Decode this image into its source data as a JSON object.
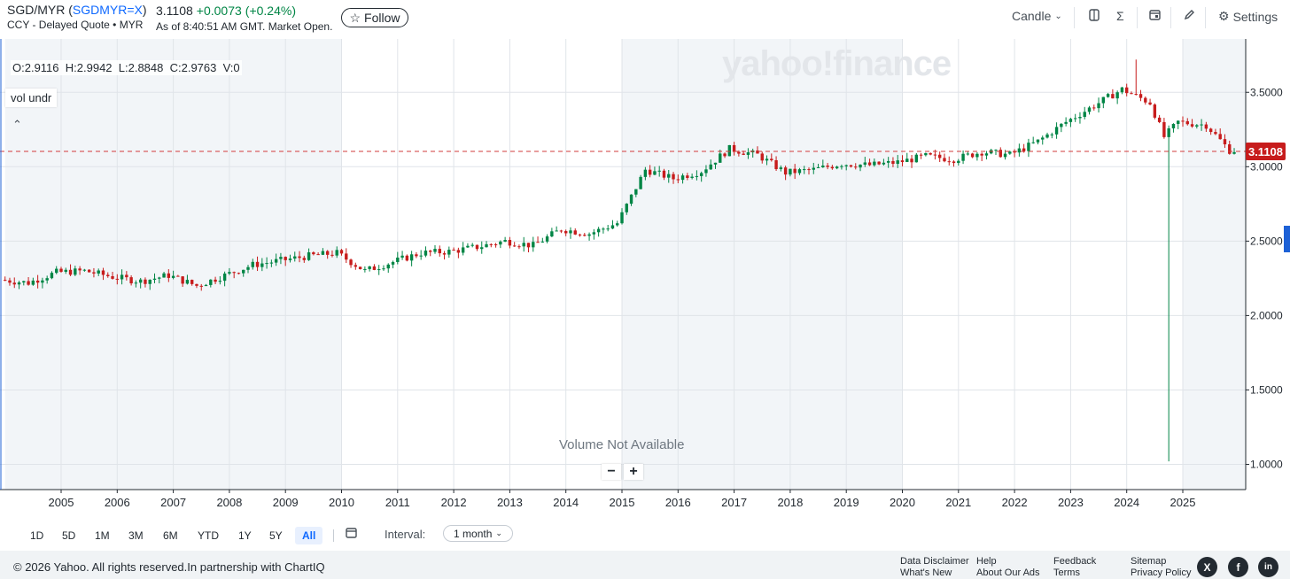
{
  "header": {
    "pair": "SGD/MYR (",
    "ticker": "SGDMYR=X",
    "pair_close": ")",
    "subtitle": "CCY - Delayed Quote • MYR",
    "price": "3.1108",
    "change": "+0.0073",
    "change_pct": "(+0.24%)",
    "as_of": "As of 8:40:51 AM GMT. Market Open.",
    "follow_icon": "☆",
    "follow_label": "Follow"
  },
  "toolbar": {
    "chart_type": "Candle",
    "settings_label": "Settings",
    "icons": [
      "compare-icon",
      "indicator-sigma-icon",
      "calendar-events-icon",
      "draw-pencil-icon",
      "gear-icon"
    ]
  },
  "chart": {
    "watermark": "yahoo!finance",
    "ohlc": {
      "o": "O:2.9116",
      "h": "H:2.9942",
      "l": "L:2.8848",
      "c": "C:2.9763",
      "v": "V:0"
    },
    "vol_label": "vol undr",
    "volume_na": "Volume Not Available",
    "zoom_out": "−",
    "zoom_in": "+",
    "last_price": "3.1108",
    "colors": {
      "up": "#008545",
      "down": "#c71c1c",
      "grid": "#e0e4e9",
      "band": "#f2f5f8"
    }
  },
  "chart_data": {
    "type": "candlestick",
    "interval": "1 month",
    "x_ticks": [
      "2005",
      "2006",
      "2007",
      "2008",
      "2009",
      "2010",
      "2011",
      "2012",
      "2013",
      "2014",
      "2015",
      "2016",
      "2017",
      "2018",
      "2019",
      "2020",
      "2021",
      "2022",
      "2023",
      "2024",
      "2025"
    ],
    "y_ticks": [
      "1.0000",
      "1.5000",
      "2.0000",
      "2.5000",
      "3.0000",
      "3.5000"
    ],
    "ylim": [
      0.99,
      3.82
    ],
    "xlim": [
      2004.0,
      2026.12
    ],
    "last_price": 3.1108,
    "series": [
      {
        "x": "2004-01",
        "close": 2.24
      },
      {
        "x": "2004-07",
        "close": 2.22
      },
      {
        "x": "2005-01",
        "close": 2.29
      },
      {
        "x": "2005-07",
        "close": 2.3
      },
      {
        "x": "2006-01",
        "close": 2.26
      },
      {
        "x": "2006-07",
        "close": 2.23
      },
      {
        "x": "2007-01",
        "close": 2.27
      },
      {
        "x": "2007-07",
        "close": 2.2
      },
      {
        "x": "2008-01",
        "close": 2.27
      },
      {
        "x": "2008-07",
        "close": 2.34
      },
      {
        "x": "2009-01",
        "close": 2.37
      },
      {
        "x": "2009-07",
        "close": 2.4
      },
      {
        "x": "2010-01",
        "close": 2.42
      },
      {
        "x": "2010-07",
        "close": 2.3
      },
      {
        "x": "2011-01",
        "close": 2.36
      },
      {
        "x": "2011-07",
        "close": 2.42
      },
      {
        "x": "2012-01",
        "close": 2.43
      },
      {
        "x": "2012-07",
        "close": 2.46
      },
      {
        "x": "2013-01",
        "close": 2.5
      },
      {
        "x": "2013-07",
        "close": 2.47
      },
      {
        "x": "2014-01",
        "close": 2.58
      },
      {
        "x": "2014-07",
        "close": 2.55
      },
      {
        "x": "2015-01",
        "close": 2.62
      },
      {
        "x": "2015-07",
        "close": 2.98
      },
      {
        "x": "2016-01",
        "close": 2.92
      },
      {
        "x": "2016-07",
        "close": 2.97
      },
      {
        "x": "2017-01",
        "close": 3.12
      },
      {
        "x": "2017-07",
        "close": 3.08
      },
      {
        "x": "2018-01",
        "close": 2.96
      },
      {
        "x": "2018-07",
        "close": 2.98
      },
      {
        "x": "2019-01",
        "close": 3.02
      },
      {
        "x": "2019-07",
        "close": 3.01
      },
      {
        "x": "2020-01",
        "close": 3.03
      },
      {
        "x": "2020-07",
        "close": 3.07
      },
      {
        "x": "2021-01",
        "close": 3.05
      },
      {
        "x": "2021-07",
        "close": 3.1
      },
      {
        "x": "2022-01",
        "close": 3.08
      },
      {
        "x": "2022-07",
        "close": 3.17
      },
      {
        "x": "2023-01",
        "close": 3.3
      },
      {
        "x": "2023-07",
        "close": 3.41
      },
      {
        "x": "2024-01",
        "close": 3.52
      },
      {
        "x": "2024-07",
        "close": 3.43
      },
      {
        "x": "2024-10",
        "close": 3.2
      },
      {
        "x": "2025-01",
        "close": 3.3
      },
      {
        "x": "2025-07",
        "close": 3.28
      },
      {
        "x": "2025-12",
        "close": 3.11
      }
    ],
    "annotations": {
      "spike_low": {
        "x": "2024-10",
        "low": 1.02
      },
      "spike_high": {
        "x": "2024-03",
        "high": 3.72
      }
    }
  },
  "ranges": [
    "1D",
    "5D",
    "1M",
    "3M",
    "6M",
    "YTD",
    "1Y",
    "5Y",
    "All"
  ],
  "active_range": "All",
  "interval_label": "Interval:",
  "interval_value": "1 month",
  "footer": {
    "copyright": "© 2026 Yahoo. All rights reserved.In partnership with ChartIQ",
    "links": [
      [
        "Data Disclaimer",
        "What's New"
      ],
      [
        "Help",
        "About Our Ads"
      ],
      [
        "Feedback",
        "Terms"
      ],
      [
        "Sitemap",
        "Privacy Policy"
      ]
    ],
    "social": [
      "X",
      "f",
      "in"
    ]
  }
}
